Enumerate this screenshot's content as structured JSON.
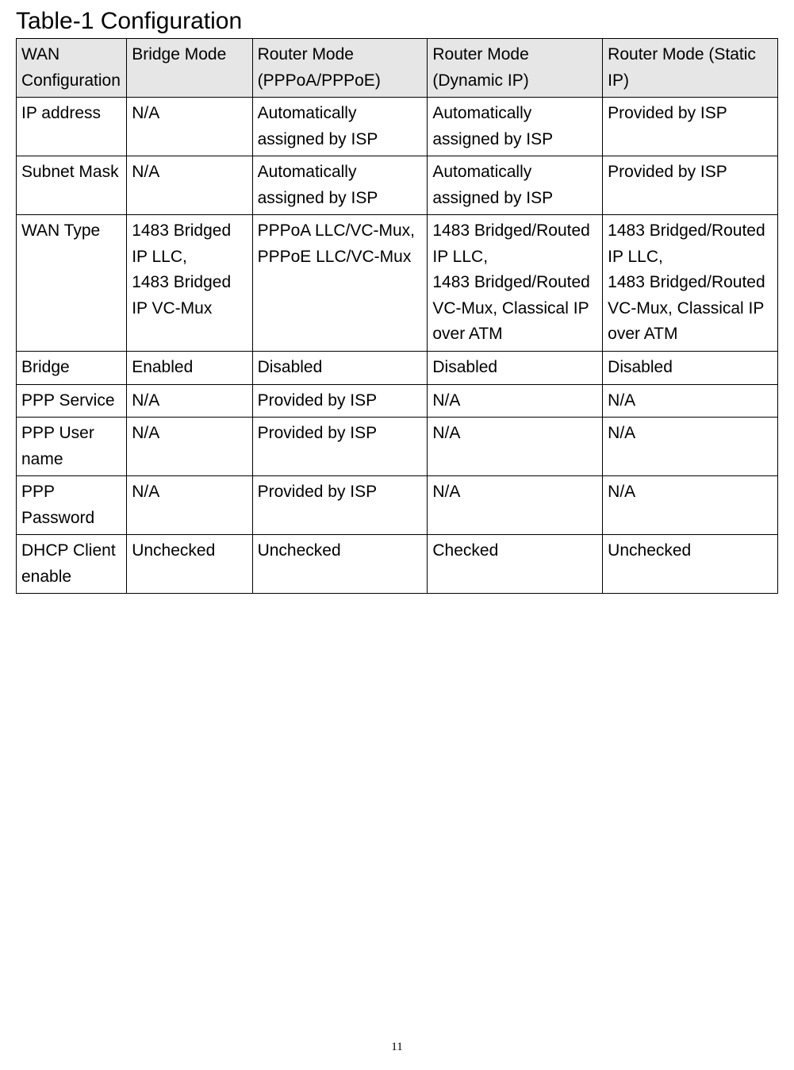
{
  "title": "Table-1 Configuration",
  "page_number": "11",
  "table": {
    "header_bg": "#e6e6e6",
    "border_color": "#000000",
    "font_size_pt": 16,
    "columns": [
      "WAN Configuration",
      "Bridge Mode",
      "Router Mode (PPPoA/PPPoE)",
      "Router Mode (Dynamic IP)",
      "Router Mode (Static IP)"
    ],
    "rows": [
      {
        "label": "IP address",
        "c2": "N/A",
        "c3": "Automatically assigned by ISP",
        "c4": "Automatically assigned by ISP",
        "c5": "Provided by ISP"
      },
      {
        "label": "Subnet Mask",
        "c2": "N/A",
        "c3": "Automatically assigned by ISP",
        "c4": "Automatically assigned by ISP",
        "c5": "Provided by ISP"
      },
      {
        "label": "WAN Type",
        "c2": "1483 Bridged IP LLC,\n1483 Bridged IP VC-Mux",
        "c3": "PPPoA LLC/VC-Mux, PPPoE LLC/VC-Mux",
        "c4": "1483 Bridged/Routed IP LLC,\n1483 Bridged/Routed VC-Mux, Classical IP over ATM",
        "c5": "1483 Bridged/Routed IP LLC,\n1483 Bridged/Routed VC-Mux, Classical IP over ATM"
      },
      {
        "label": "Bridge",
        "c2": "Enabled",
        "c3": "Disabled",
        "c4": "Disabled",
        "c5": "Disabled"
      },
      {
        "label": "PPP Service",
        "c2": "N/A",
        "c3": "Provided by ISP",
        "c4": "N/A",
        "c5": "N/A"
      },
      {
        "label": "PPP User name",
        "c2": "N/A",
        "c3": "Provided by ISP",
        "c4": "N/A",
        "c5": "N/A"
      },
      {
        "label": "PPP Password",
        "c2": "N/A",
        "c3": "Provided by ISP",
        "c4": "N/A",
        "c5": "N/A"
      },
      {
        "label": "DHCP Client enable",
        "c2": "Unchecked",
        "c3": "Unchecked",
        "c4": "Checked",
        "c5": "Unchecked"
      }
    ]
  }
}
